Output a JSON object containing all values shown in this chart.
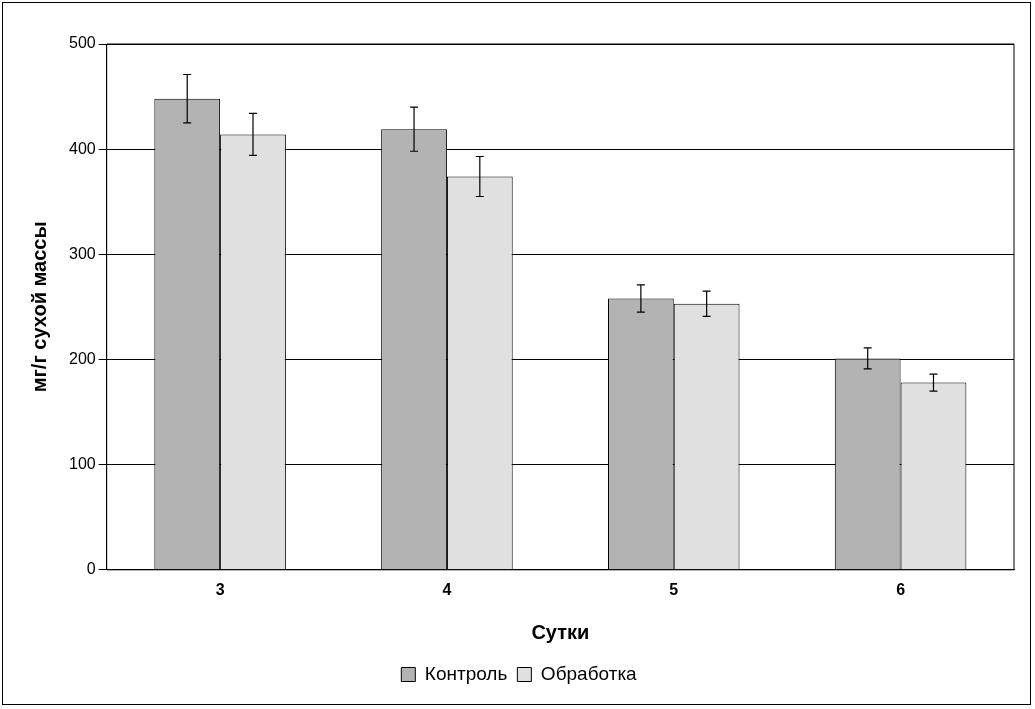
{
  "chart_data": {
    "type": "bar",
    "xlabel": "Сутки",
    "ylabel": "мг/г сухой массы",
    "categories": [
      "3",
      "4",
      "5",
      "6"
    ],
    "series": [
      {
        "name": "Контроль",
        "color": "#b3b3b3",
        "values": [
          448,
          419,
          258,
          201
        ],
        "errors": [
          23,
          21,
          13,
          10
        ]
      },
      {
        "name": "Обработка",
        "color": "#e0e0e0",
        "values": [
          414,
          374,
          253,
          178
        ],
        "errors": [
          20,
          19,
          12,
          8
        ]
      }
    ],
    "ylim": [
      0,
      500
    ],
    "yticks": [
      0,
      100,
      200,
      300,
      400,
      500
    ],
    "grid": "y",
    "legend": "bottom"
  }
}
